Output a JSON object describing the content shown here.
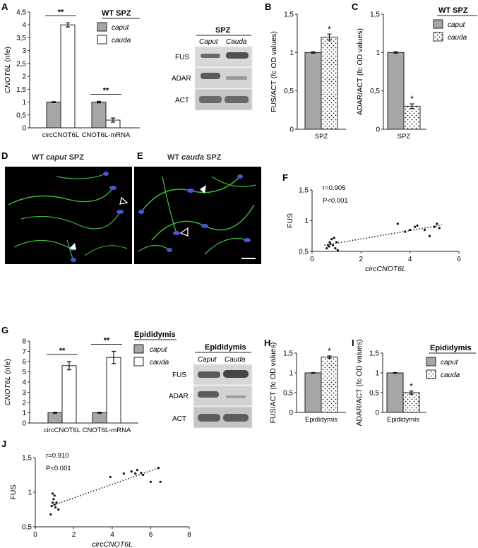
{
  "panel_letters": {
    "A": "A",
    "B": "B",
    "C": "C",
    "D": "D",
    "E": "E",
    "F": "F",
    "G": "G",
    "H": "H",
    "I": "I",
    "J": "J"
  },
  "colors": {
    "caput": "#a6a6a6",
    "cauda_white": "#ffffff",
    "axis": "#222222",
    "fluor_bg": "#000000",
    "tubulin": "#3dbb3d",
    "nucleus": "#4a55d8"
  },
  "legends": {
    "A": {
      "title": "WT SPZ",
      "items": [
        "caput",
        "cauda"
      ]
    },
    "C": {
      "title": "WT SPZ",
      "items": [
        "caput",
        "cauda"
      ]
    },
    "G": {
      "title": "Epididymis",
      "items": [
        "caput",
        "cauda"
      ]
    },
    "I": {
      "title": "Epididymis",
      "items": [
        "caput",
        "cauda"
      ]
    }
  },
  "blots": {
    "A": {
      "title": "SPZ",
      "lanes": [
        "Caput",
        "Cauda"
      ],
      "rows": [
        "FUS",
        "ADAR",
        "ACT"
      ]
    },
    "G": {
      "title": "Epididymis",
      "lanes": [
        "Caput",
        "Cauda"
      ],
      "rows": [
        "FUS",
        "ADAR",
        "ACT"
      ]
    }
  },
  "micrographs": {
    "D": {
      "title_pre": "WT ",
      "title_em": "caput",
      "title_post": " SPZ"
    },
    "E": {
      "title_pre": "WT ",
      "title_em": "cauda",
      "title_post": " SPZ"
    }
  },
  "chart_data": [
    {
      "id": "A",
      "type": "bar",
      "categories": [
        "circCNOT6L",
        "CNOT6L-mRNA"
      ],
      "series": [
        {
          "name": "caput",
          "values": [
            1,
            1
          ],
          "err": [
            0.02,
            0.03
          ]
        },
        {
          "name": "cauda",
          "values": [
            4.0,
            0.3
          ],
          "err": [
            0.08,
            0.08
          ]
        }
      ],
      "ylabel": "CNOT6L (nfe)",
      "ylim": [
        0,
        4.5
      ],
      "yticks": [
        "0",
        "0,5",
        "1",
        "1,5",
        "2",
        "2,5",
        "3",
        "3,5",
        "4",
        "4,5"
      ],
      "significance": [
        "**",
        "**"
      ]
    },
    {
      "id": "B",
      "type": "bar",
      "categories": [
        "SPZ"
      ],
      "series": [
        {
          "name": "caput",
          "values": [
            1.0
          ],
          "err": [
            0.01
          ]
        },
        {
          "name": "cauda",
          "values": [
            1.2
          ],
          "err": [
            0.04
          ]
        }
      ],
      "ylabel": "FUS/ACT (fc OD values)",
      "ylim": [
        0,
        1.5
      ],
      "yticks": [
        "0",
        "0,5",
        "1",
        "1,5"
      ],
      "significance": [
        "*"
      ]
    },
    {
      "id": "C",
      "type": "bar",
      "categories": [
        "SPZ"
      ],
      "series": [
        {
          "name": "caput",
          "values": [
            1.0
          ],
          "err": [
            0.01
          ]
        },
        {
          "name": "cauda",
          "values": [
            0.3
          ],
          "err": [
            0.03
          ]
        }
      ],
      "ylabel": "ADAR/ACT (fc OD values)",
      "ylim": [
        0,
        1.5
      ],
      "yticks": [
        "0",
        "0,5",
        "1",
        "1,5"
      ],
      "significance": [
        "*"
      ]
    },
    {
      "id": "F",
      "type": "scatter",
      "xlabel": "circCNOT6L",
      "ylabel": "FUS",
      "xlim": [
        0,
        6
      ],
      "ylim": [
        0.5,
        1.5
      ],
      "xticks": [
        "0",
        "2",
        "4",
        "6"
      ],
      "yticks": [
        "0,5",
        "1",
        "1,5"
      ],
      "annotations": [
        "r=0.905",
        "P<0.001"
      ],
      "x": [
        0.6,
        0.65,
        0.7,
        0.72,
        0.75,
        0.8,
        0.85,
        0.9,
        0.95,
        1.0,
        1.05,
        3.5,
        3.8,
        4.0,
        4.2,
        4.3,
        4.6,
        4.8,
        5.0,
        5.1,
        5.2
      ],
      "y": [
        0.55,
        0.6,
        0.58,
        0.65,
        0.62,
        0.7,
        0.6,
        0.72,
        0.55,
        0.65,
        0.52,
        0.95,
        0.82,
        0.85,
        0.9,
        0.92,
        0.85,
        0.75,
        0.9,
        0.95,
        0.88
      ],
      "trend": [
        [
          0.5,
          0.6
        ],
        [
          5.3,
          0.93
        ]
      ]
    },
    {
      "id": "G",
      "type": "bar",
      "categories": [
        "circCNOT6L",
        "CNOT6L-mRNA"
      ],
      "series": [
        {
          "name": "caput",
          "values": [
            1,
            1
          ],
          "err": [
            0.05,
            0.05
          ]
        },
        {
          "name": "cauda",
          "values": [
            5.6,
            6.4
          ],
          "err": [
            0.4,
            0.6
          ]
        }
      ],
      "ylabel": "CNOT6L (nfe)",
      "ylim": [
        0,
        8
      ],
      "yticks": [
        "0",
        "1",
        "2",
        "3",
        "4",
        "5",
        "6",
        "7",
        "8"
      ],
      "significance": [
        "**",
        "**"
      ]
    },
    {
      "id": "H",
      "type": "bar",
      "categories": [
        "Epididymis"
      ],
      "series": [
        {
          "name": "caput",
          "values": [
            1.0
          ],
          "err": [
            0.01
          ]
        },
        {
          "name": "cauda",
          "values": [
            1.4
          ],
          "err": [
            0.03
          ]
        }
      ],
      "ylabel": "FUS/ACT (fc OD values)",
      "ylim": [
        0,
        1.5
      ],
      "yticks": [
        "0",
        "0,5",
        "1",
        "1,5"
      ],
      "significance": [
        "*"
      ]
    },
    {
      "id": "I",
      "type": "bar",
      "categories": [
        "Epididymis"
      ],
      "series": [
        {
          "name": "caput",
          "values": [
            1.0
          ],
          "err": [
            0.01
          ]
        },
        {
          "name": "cauda",
          "values": [
            0.5
          ],
          "err": [
            0.04
          ]
        }
      ],
      "ylabel": "ADAR/ACT (fc OD values)",
      "ylim": [
        0,
        1.5
      ],
      "yticks": [
        "0",
        "0,5",
        "1",
        "1,5"
      ],
      "significance": [
        "*"
      ]
    },
    {
      "id": "J",
      "type": "scatter",
      "xlabel": "circCNOT6L",
      "ylabel": "FUS",
      "xlim": [
        0,
        8
      ],
      "ylim": [
        0.5,
        1.5
      ],
      "xticks": [
        "0",
        "2",
        "4",
        "6",
        "8"
      ],
      "yticks": [
        "0,5",
        "1",
        "1,5"
      ],
      "annotations": [
        "r=0.910",
        "P<0.001"
      ],
      "x": [
        0.8,
        0.85,
        0.9,
        0.95,
        1.0,
        1.05,
        1.1,
        1.2,
        0.9,
        1.0,
        3.9,
        4.6,
        5.0,
        5.2,
        5.3,
        5.5,
        5.6,
        6.0,
        6.4,
        6.5
      ],
      "y": [
        0.68,
        0.8,
        0.85,
        0.9,
        0.95,
        0.78,
        0.85,
        0.75,
        0.98,
        0.82,
        1.22,
        1.27,
        1.3,
        1.27,
        1.32,
        1.28,
        1.25,
        1.15,
        1.35,
        1.15
      ],
      "trend": [
        [
          0.8,
          0.8
        ],
        [
          6.4,
          1.35
        ]
      ]
    }
  ]
}
